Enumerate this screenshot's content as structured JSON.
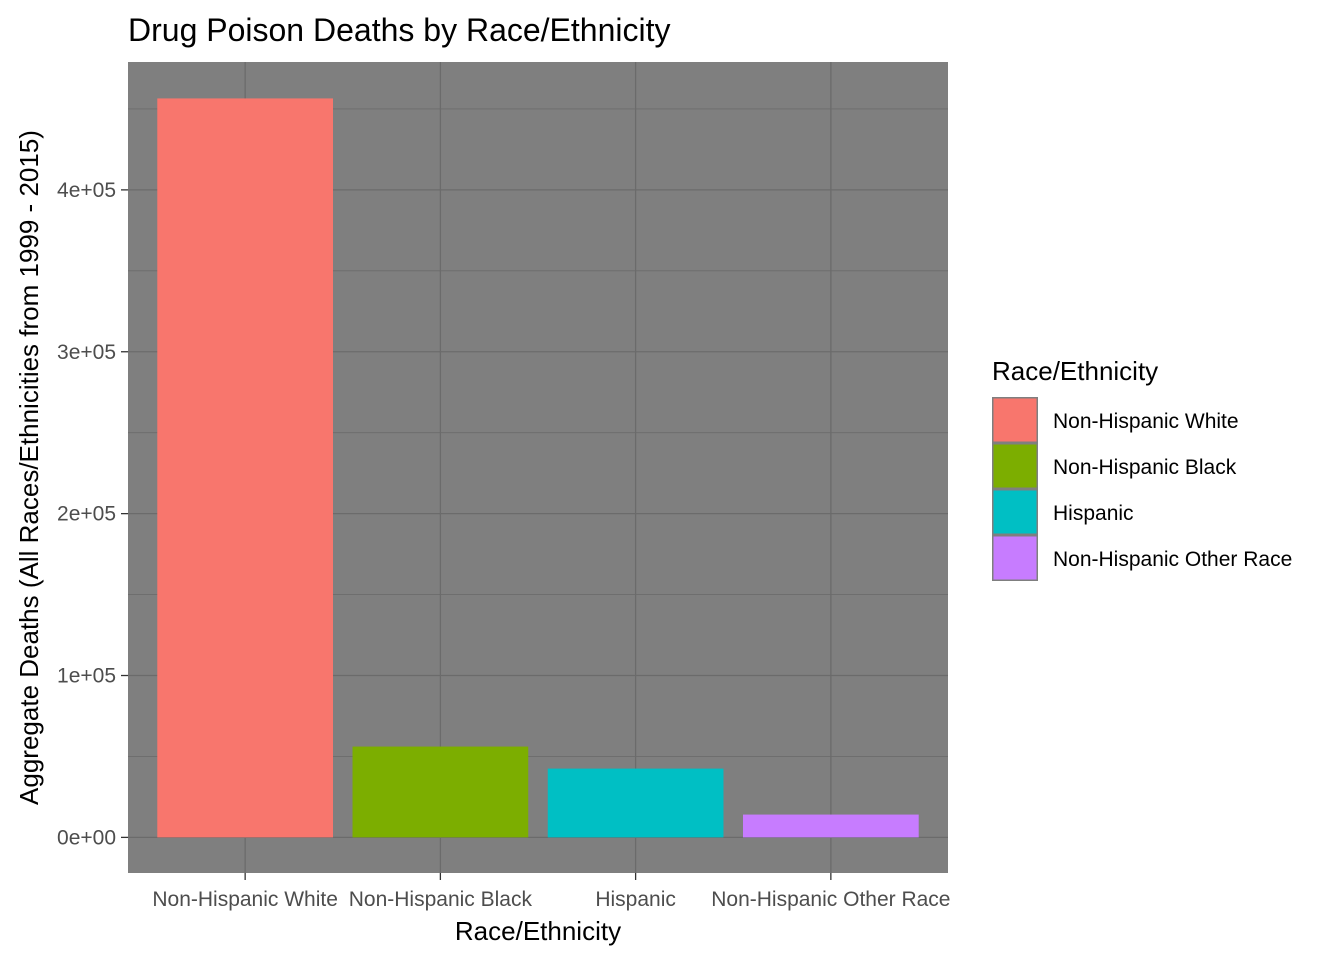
{
  "chart_data": {
    "type": "bar",
    "title": "Drug Poison Deaths by Race/Ethnicity",
    "xlabel": "Race/Ethnicity",
    "ylabel": "Aggregate Deaths (All Races/Ethnicities from 1999 - 2015)",
    "categories": [
      "Non-Hispanic White",
      "Non-Hispanic Black",
      "Hispanic",
      "Non-Hispanic Other Race"
    ],
    "values": [
      456500,
      56100,
      42500,
      14100
    ],
    "colors": [
      "#F8766D",
      "#7CAE00",
      "#00BFC4",
      "#C77CFF"
    ],
    "ylim": [
      -22000,
      479000
    ],
    "yticks": [
      0,
      100000,
      200000,
      300000,
      400000
    ],
    "ytick_labels": [
      "0e+00",
      "1e+05",
      "2e+05",
      "3e+05",
      "4e+05"
    ],
    "panel_background": "#7f7f7f",
    "grid": true,
    "legend": {
      "title": "Race/Ethnicity",
      "position": "right",
      "entries": [
        "Non-Hispanic White",
        "Non-Hispanic Black",
        "Hispanic",
        "Non-Hispanic Other Race"
      ]
    }
  }
}
